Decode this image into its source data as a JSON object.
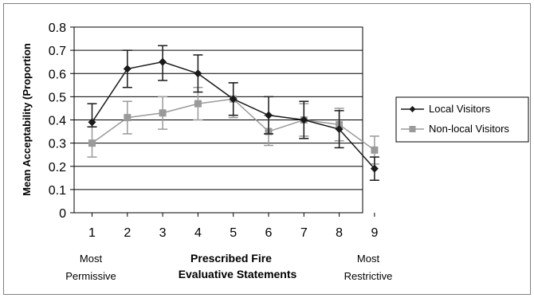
{
  "chart_data": {
    "type": "line",
    "categories": [
      "1",
      "2",
      "3",
      "4",
      "5",
      "6",
      "7",
      "8",
      "9"
    ],
    "ylabel": "Mean Acceptability (Proportion",
    "xlabel_line1": "Prescribed Fire",
    "xlabel_line2": "Evaluative Statements",
    "ylim": [
      0,
      0.8
    ],
    "yticks": [
      "0",
      "0.1",
      "0.2",
      "0.3",
      "0.4",
      "0.5",
      "0.6",
      "0.7",
      "0.8"
    ],
    "grid": true,
    "legend_position": "right",
    "notes": {
      "left_line1": "Most",
      "left_line2": "Permissive",
      "right_line1": "Most",
      "right_line2": "Restrictive"
    },
    "series": [
      {
        "name": "Local Visitors",
        "color": "#1a1a1a",
        "marker": "diamond",
        "values": [
          0.39,
          0.62,
          0.65,
          0.6,
          0.49,
          0.42,
          0.4,
          0.36,
          0.19
        ],
        "err_low": [
          0.37,
          0.54,
          0.57,
          0.52,
          0.42,
          0.34,
          0.32,
          0.28,
          0.14
        ],
        "err_high": [
          0.47,
          0.7,
          0.72,
          0.68,
          0.56,
          0.5,
          0.48,
          0.44,
          0.24
        ]
      },
      {
        "name": "Non-local Visitors",
        "color": "#9a9a9a",
        "marker": "square",
        "values": [
          0.3,
          0.41,
          0.43,
          0.47,
          0.49,
          0.35,
          0.4,
          0.38,
          0.27
        ],
        "err_low": [
          0.24,
          0.34,
          0.36,
          0.4,
          0.41,
          0.29,
          0.33,
          0.31,
          0.21
        ],
        "err_high": [
          0.37,
          0.48,
          0.5,
          0.54,
          0.56,
          0.42,
          0.47,
          0.45,
          0.33
        ]
      }
    ]
  }
}
